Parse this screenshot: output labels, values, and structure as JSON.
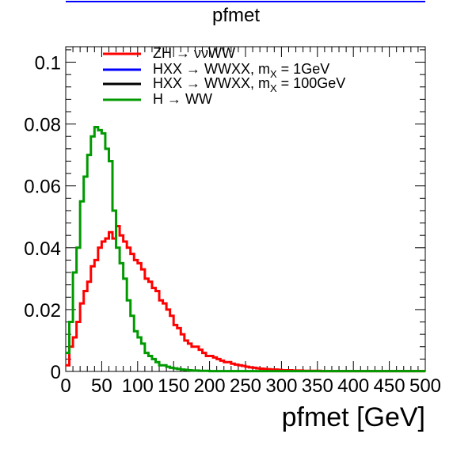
{
  "chart_data": {
    "type": "line",
    "title": "pfmet",
    "xlabel": "pfmet [GeV]",
    "ylabel": "",
    "xlim": [
      0,
      500
    ],
    "ylim": [
      0,
      0.105
    ],
    "xticks": [
      0,
      50,
      100,
      150,
      200,
      250,
      300,
      350,
      400,
      450,
      500
    ],
    "xtick_labels": [
      "0",
      "50",
      "100",
      "150",
      "200",
      "250",
      "300",
      "350",
      "400",
      "450",
      "500"
    ],
    "yticks": [
      0,
      0.02,
      0.04,
      0.06,
      0.08,
      0.1
    ],
    "ytick_labels": [
      "0",
      "0.02",
      "0.04",
      "0.06",
      "0.08",
      "0.1"
    ],
    "grid": false,
    "legend_position": "top",
    "legend": [
      {
        "label": "ZH → ννWW",
        "color": "#ff0000"
      },
      {
        "label": "HXX → WWXX, m",
        "sub": "X",
        "tail": " = 1GeV",
        "color": "#0000ff"
      },
      {
        "label": "HXX → WWXX, m",
        "sub": "X",
        "tail": " = 100GeV",
        "color": "#000000"
      },
      {
        "label": "H → WW",
        "color": "#009900"
      }
    ],
    "bin_width": 5,
    "series": [
      {
        "name": "ZH → ννWW",
        "color": "#ff0000",
        "x": [
          0,
          5,
          10,
          15,
          20,
          25,
          30,
          35,
          40,
          45,
          50,
          55,
          60,
          65,
          70,
          75,
          80,
          85,
          90,
          95,
          100,
          105,
          110,
          115,
          120,
          125,
          130,
          135,
          140,
          145,
          150,
          155,
          160,
          165,
          170,
          175,
          180,
          185,
          190,
          195,
          200,
          205,
          210,
          215,
          220,
          225,
          230,
          235,
          240,
          245,
          250,
          255,
          260,
          265,
          270,
          275,
          280,
          285,
          290,
          295,
          300,
          305,
          310,
          315,
          320,
          325,
          330,
          335,
          340,
          345,
          350,
          355,
          360,
          365,
          370,
          375,
          380,
          385,
          390,
          395,
          400,
          405,
          410,
          415,
          420,
          425,
          430,
          435,
          440,
          445,
          450,
          455,
          460,
          465,
          470,
          475,
          480,
          485,
          490,
          495
        ],
        "values": [
          0.002,
          0.008,
          0.011,
          0.016,
          0.022,
          0.026,
          0.029,
          0.034,
          0.036,
          0.04,
          0.042,
          0.043,
          0.045,
          0.043,
          0.047,
          0.044,
          0.042,
          0.04,
          0.038,
          0.036,
          0.035,
          0.033,
          0.03,
          0.029,
          0.027,
          0.026,
          0.023,
          0.022,
          0.02,
          0.018,
          0.015,
          0.014,
          0.012,
          0.01,
          0.009,
          0.008,
          0.008,
          0.007,
          0.006,
          0.005,
          0.005,
          0.0045,
          0.004,
          0.0035,
          0.003,
          0.003,
          0.0025,
          0.0022,
          0.002,
          0.0018,
          0.0015,
          0.0013,
          0.0012,
          0.001,
          0.0009,
          0.0008,
          0.0007,
          0.0006,
          0.0006,
          0.0005,
          0.0004,
          0.0004,
          0.0004,
          0.0003,
          0.0003,
          0.0003,
          0.0002,
          0.0002,
          0.0002,
          0.0002,
          0.0002,
          0.0001,
          0.0001,
          0.0001,
          0.0001,
          0.0001,
          0.0001,
          0.0001,
          0.0001,
          0.0001,
          0.0001,
          0.0001,
          0.0001,
          0.0001,
          0.0001,
          0.0001,
          0.0001,
          0.0001,
          0.0001,
          0.0001,
          0.0001,
          0.0001,
          0.0001,
          0.0001,
          0.0001,
          0.0001,
          0.0001,
          0.0001,
          0.0001,
          0.0001
        ]
      },
      {
        "name": "H → WW",
        "color": "#009900",
        "x": [
          0,
          5,
          10,
          15,
          20,
          25,
          30,
          35,
          40,
          45,
          50,
          55,
          60,
          65,
          70,
          75,
          80,
          85,
          90,
          95,
          100,
          105,
          110,
          115,
          120,
          125,
          130,
          135,
          140,
          145,
          150,
          155,
          160,
          165,
          170,
          175,
          180,
          185,
          190,
          195,
          200,
          205,
          210,
          215,
          220,
          225,
          230,
          235,
          240,
          245,
          250,
          255,
          260,
          265,
          270,
          275,
          280,
          285,
          290,
          295,
          300,
          305,
          310,
          315,
          320,
          325,
          330,
          335,
          340,
          345,
          350,
          355,
          360,
          365,
          370,
          375,
          380,
          385,
          390,
          395,
          400,
          405,
          410,
          415,
          420,
          425,
          430,
          435,
          440,
          445,
          450,
          455,
          460,
          465,
          470,
          475,
          480,
          485,
          490,
          495
        ],
        "values": [
          0.006,
          0.016,
          0.032,
          0.04,
          0.055,
          0.063,
          0.07,
          0.076,
          0.079,
          0.078,
          0.077,
          0.072,
          0.068,
          0.052,
          0.04,
          0.035,
          0.03,
          0.023,
          0.018,
          0.013,
          0.011,
          0.009,
          0.006,
          0.005,
          0.004,
          0.003,
          0.002,
          0.002,
          0.0015,
          0.0012,
          0.001,
          0.0008,
          0.0006,
          0.0005,
          0.0004,
          0.0003,
          0.0003,
          0.0002,
          0.0002,
          0.0002,
          0.0001,
          0.0001,
          0.0001,
          0.0001,
          0.0001,
          0.0001,
          0.0001,
          0.0001,
          0.0001,
          0.0001,
          0.0001,
          0.0001,
          0.0001,
          0.0001,
          0.0001,
          0.0001,
          0.0001,
          0.0001,
          0.0001,
          0.0001,
          0.0001,
          0.0001,
          0.0001,
          0.0001,
          0.0001,
          0.0001,
          0.0001,
          0.0001,
          0.0001,
          0.0001,
          0.0001,
          0.0001,
          0.0001,
          0.0001,
          0.0001,
          0.0001,
          0.0001,
          0.0001,
          0.0001,
          0.0001,
          0.0001,
          0.0001,
          0.0001,
          0.0001,
          0.0001,
          0.0001,
          0.0001,
          0.0001,
          0.0001,
          0.0001,
          0.0001,
          0.0001,
          0.0001,
          0.0001,
          0.0001,
          0.0001,
          0.0001,
          0.0001,
          0.0001,
          0.0001
        ]
      }
    ]
  }
}
